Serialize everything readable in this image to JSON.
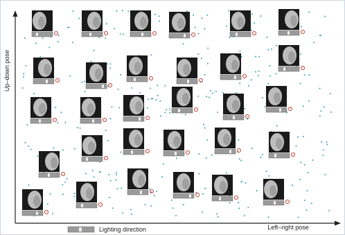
{
  "axes": {
    "y_label": "Up–down pose",
    "x_label": "Left–right pose"
  },
  "legend": {
    "label": "Lighting direction"
  }
}
